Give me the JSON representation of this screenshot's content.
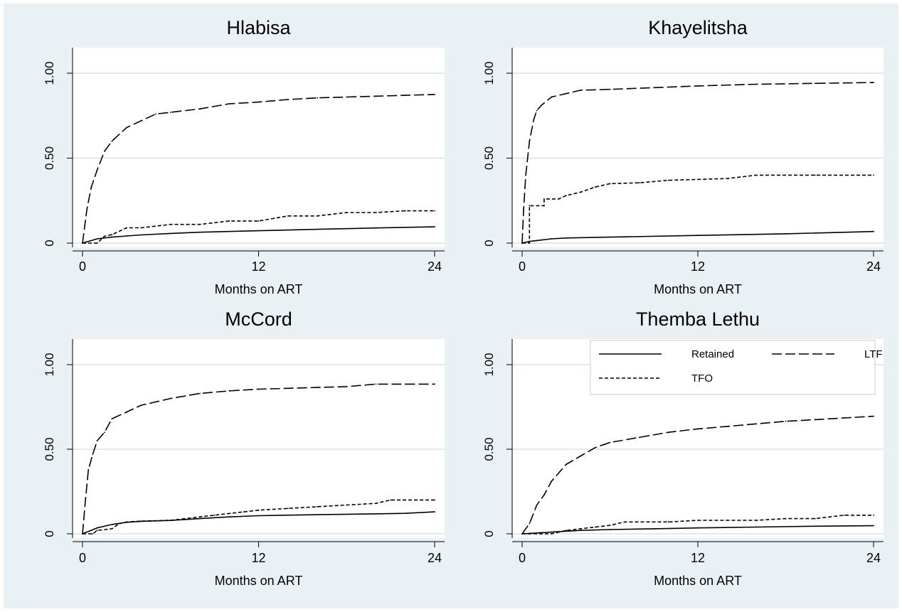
{
  "chart_data": [
    {
      "type": "line",
      "title": "Hlabisa",
      "xlabel": "Months on ART",
      "ylabel": "",
      "xlim": [
        0,
        24
      ],
      "ylim": [
        0,
        1
      ],
      "xticks": [
        "0",
        "12",
        "24"
      ],
      "yticks": [
        "0",
        "0.50",
        "1.00"
      ],
      "grid": true,
      "series": [
        {
          "name": "Retained",
          "dash": "solid",
          "x": [
            0,
            1,
            2,
            3,
            4,
            6,
            8,
            12,
            16,
            20,
            24
          ],
          "y": [
            0,
            0.025,
            0.035,
            0.042,
            0.048,
            0.057,
            0.064,
            0.073,
            0.081,
            0.089,
            0.096
          ]
        },
        {
          "name": "LTF",
          "dash": "long",
          "x": [
            0,
            0.3,
            0.6,
            1,
            1.5,
            2,
            3,
            4,
            5,
            6,
            8,
            10,
            12,
            14,
            16,
            18,
            20,
            22,
            24
          ],
          "y": [
            0,
            0.2,
            0.33,
            0.43,
            0.54,
            0.6,
            0.68,
            0.72,
            0.76,
            0.77,
            0.79,
            0.82,
            0.83,
            0.845,
            0.855,
            0.86,
            0.865,
            0.87,
            0.875
          ]
        },
        {
          "name": "TFO",
          "dash": "short",
          "x": [
            0,
            1,
            1.5,
            2,
            3,
            4,
            6,
            8,
            10,
            12,
            14,
            16,
            18,
            20,
            22,
            24
          ],
          "y": [
            0,
            0,
            0.04,
            0.05,
            0.09,
            0.09,
            0.11,
            0.11,
            0.13,
            0.13,
            0.16,
            0.16,
            0.18,
            0.18,
            0.19,
            0.19
          ]
        }
      ]
    },
    {
      "type": "line",
      "title": "Khayelitsha",
      "xlabel": "Months on ART",
      "ylabel": "",
      "xlim": [
        0,
        24
      ],
      "ylim": [
        0,
        1
      ],
      "xticks": [
        "0",
        "12",
        "24"
      ],
      "yticks": [
        "0",
        "0.50",
        "1.00"
      ],
      "grid": true,
      "series": [
        {
          "name": "Retained",
          "dash": "solid",
          "x": [
            0,
            0.5,
            1,
            2,
            3,
            6,
            12,
            18,
            24
          ],
          "y": [
            0,
            0.01,
            0.015,
            0.025,
            0.03,
            0.035,
            0.045,
            0.055,
            0.068
          ]
        },
        {
          "name": "LTF",
          "dash": "long",
          "x": [
            0,
            0.1,
            0.25,
            0.5,
            0.8,
            1,
            1.3,
            2,
            3,
            4,
            6,
            9,
            12,
            16,
            20,
            24
          ],
          "y": [
            0,
            0.2,
            0.4,
            0.6,
            0.73,
            0.78,
            0.81,
            0.86,
            0.88,
            0.9,
            0.905,
            0.915,
            0.925,
            0.935,
            0.94,
            0.945
          ]
        },
        {
          "name": "TFO",
          "dash": "short",
          "x": [
            0,
            0.5,
            0.5,
            1.5,
            1.5,
            2.5,
            3,
            4,
            5,
            6,
            8,
            10,
            12,
            14,
            16,
            20,
            24
          ],
          "y": [
            0,
            0,
            0.22,
            0.22,
            0.26,
            0.26,
            0.28,
            0.3,
            0.33,
            0.35,
            0.355,
            0.37,
            0.375,
            0.38,
            0.4,
            0.4,
            0.4
          ]
        }
      ]
    },
    {
      "type": "line",
      "title": "McCord",
      "xlabel": "Months on ART",
      "ylabel": "",
      "xlim": [
        0,
        24
      ],
      "ylim": [
        0,
        1
      ],
      "xticks": [
        "0",
        "12",
        "24"
      ],
      "yticks": [
        "0",
        "0.50",
        "1.00"
      ],
      "grid": true,
      "series": [
        {
          "name": "Retained",
          "dash": "solid",
          "x": [
            0,
            1,
            2,
            3,
            4,
            6,
            8,
            10,
            12,
            16,
            20,
            22,
            24
          ],
          "y": [
            0,
            0.035,
            0.055,
            0.068,
            0.074,
            0.079,
            0.09,
            0.1,
            0.107,
            0.113,
            0.118,
            0.121,
            0.13
          ]
        },
        {
          "name": "LTF",
          "dash": "long",
          "x": [
            0,
            0.2,
            0.4,
            0.7,
            1,
            1.5,
            2,
            3,
            4,
            5,
            6,
            8,
            10,
            12,
            14,
            16,
            18,
            20,
            22,
            24
          ],
          "y": [
            0,
            0.2,
            0.38,
            0.47,
            0.55,
            0.6,
            0.68,
            0.72,
            0.76,
            0.78,
            0.8,
            0.83,
            0.845,
            0.855,
            0.86,
            0.865,
            0.87,
            0.885,
            0.885,
            0.885
          ]
        },
        {
          "name": "TFO",
          "dash": "short",
          "x": [
            0,
            0.7,
            1,
            2,
            2.5,
            3,
            4,
            6,
            8,
            9,
            10,
            11,
            12,
            14,
            16,
            18,
            20,
            21,
            22,
            24
          ],
          "y": [
            0,
            0,
            0.02,
            0.03,
            0.06,
            0.07,
            0.075,
            0.08,
            0.1,
            0.11,
            0.12,
            0.13,
            0.14,
            0.15,
            0.16,
            0.17,
            0.18,
            0.2,
            0.2,
            0.2
          ]
        }
      ]
    },
    {
      "type": "line",
      "title": "Themba Lethu",
      "xlabel": "Months on ART",
      "ylabel": "",
      "xlim": [
        0,
        24
      ],
      "ylim": [
        0,
        1
      ],
      "xticks": [
        "0",
        "12",
        "24"
      ],
      "yticks": [
        "0",
        "0.50",
        "1.00"
      ],
      "grid": true,
      "legend": {
        "placement": "top-right",
        "entries": [
          "Retained",
          "LTF",
          "TFO"
        ]
      },
      "series": [
        {
          "name": "Retained",
          "dash": "solid",
          "x": [
            0,
            1,
            2,
            4,
            6,
            9,
            12,
            16,
            20,
            24
          ],
          "y": [
            0,
            0.005,
            0.01,
            0.02,
            0.025,
            0.03,
            0.035,
            0.04,
            0.045,
            0.048
          ]
        },
        {
          "name": "LTF",
          "dash": "long",
          "x": [
            0,
            0.5,
            1,
            1.5,
            2,
            3,
            4,
            5,
            6,
            8,
            10,
            12,
            14,
            16,
            18,
            20,
            22,
            24
          ],
          "y": [
            0,
            0.06,
            0.17,
            0.23,
            0.31,
            0.41,
            0.46,
            0.51,
            0.54,
            0.57,
            0.6,
            0.62,
            0.635,
            0.65,
            0.665,
            0.675,
            0.685,
            0.695
          ]
        },
        {
          "name": "TFO",
          "dash": "short",
          "x": [
            0,
            2,
            3,
            4,
            5,
            6,
            7,
            10,
            12,
            14,
            16,
            18,
            20,
            22,
            24
          ],
          "y": [
            0,
            0,
            0.02,
            0.03,
            0.04,
            0.05,
            0.07,
            0.07,
            0.08,
            0.08,
            0.08,
            0.09,
            0.09,
            0.11,
            0.11
          ]
        }
      ]
    }
  ]
}
